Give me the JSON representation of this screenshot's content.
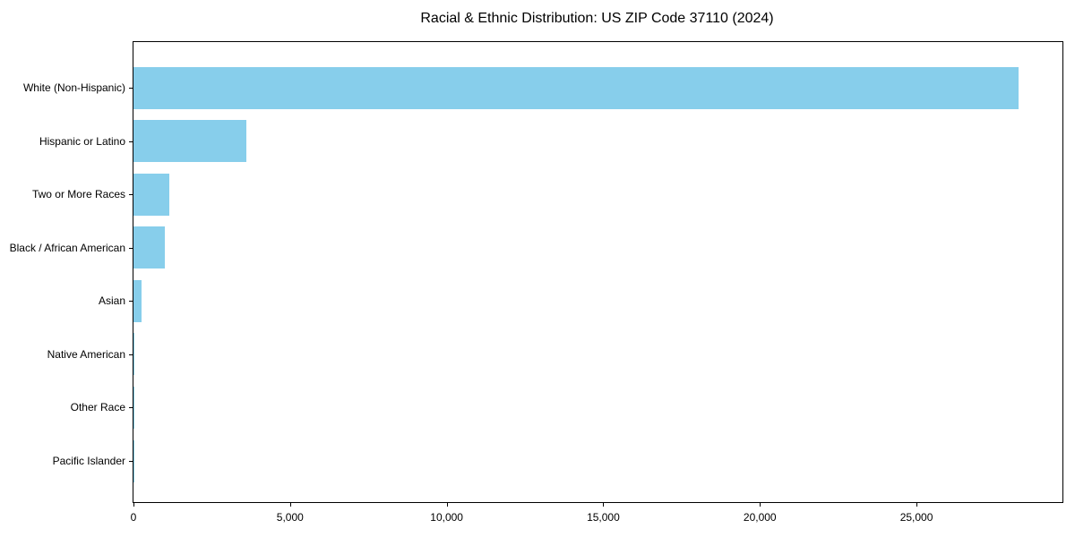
{
  "chart": {
    "title": "Racial & Ethnic Distribution: US ZIP Code 37110 (2024)"
  },
  "chart_data": {
    "type": "bar",
    "orientation": "horizontal",
    "title": "Racial & Ethnic Distribution: US ZIP Code 37110 (2024)",
    "xlabel": "",
    "ylabel": "",
    "categories": [
      "White (Non-Hispanic)",
      "Hispanic or Latino",
      "Two or More Races",
      "Black / African American",
      "Asian",
      "Native American",
      "Other Race",
      "Pacific Islander"
    ],
    "values": [
      28250,
      3610,
      1140,
      1010,
      260,
      30,
      15,
      8
    ],
    "xlim": [
      0,
      29660
    ],
    "x_ticks": [
      0,
      5000,
      10000,
      15000,
      20000,
      25000
    ],
    "x_tick_labels": [
      "0",
      "5,000",
      "10,000",
      "15,000",
      "20,000",
      "25,000"
    ],
    "bar_color": "#87ceeb",
    "axis_color": "#000000",
    "grid": false,
    "legend": false,
    "category_order": "largest-at-top"
  }
}
